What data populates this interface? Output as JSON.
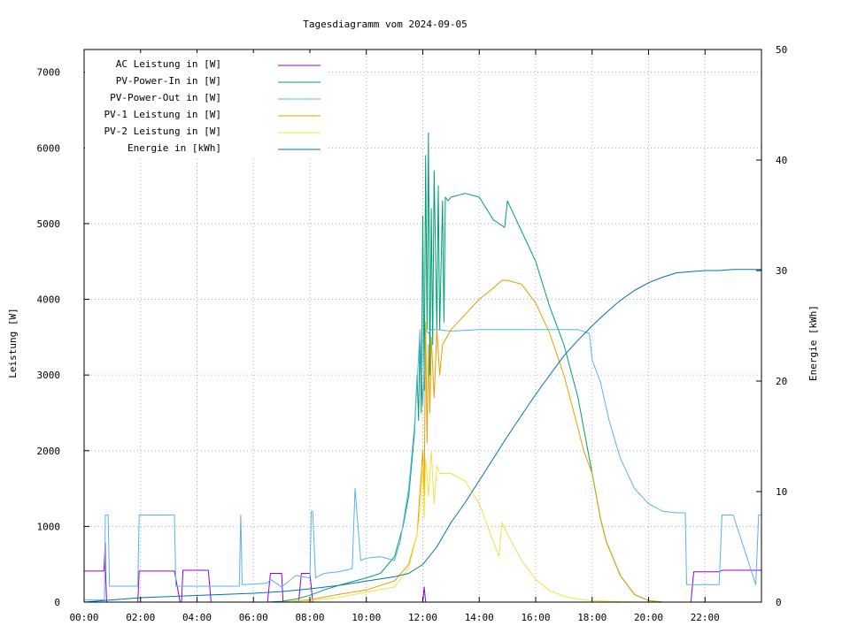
{
  "chart_data": {
    "type": "line",
    "title": "Tagesdiagramm vom 2024-09-05",
    "ylabel": "Leistung [W]",
    "y2label": "Energie [kWh]",
    "xlim": [
      0,
      24
    ],
    "ylim": [
      0,
      7300
    ],
    "y2lim": [
      0,
      50
    ],
    "x_ticks": [
      {
        "v": 0,
        "label": "00:00"
      },
      {
        "v": 2,
        "label": "02:00"
      },
      {
        "v": 4,
        "label": "04:00"
      },
      {
        "v": 6,
        "label": "06:00"
      },
      {
        "v": 8,
        "label": "08:00"
      },
      {
        "v": 10,
        "label": "10:00"
      },
      {
        "v": 12,
        "label": "12:00"
      },
      {
        "v": 14,
        "label": "14:00"
      },
      {
        "v": 16,
        "label": "16:00"
      },
      {
        "v": 18,
        "label": "18:00"
      },
      {
        "v": 20,
        "label": "20:00"
      },
      {
        "v": 22,
        "label": "22:00"
      }
    ],
    "y_ticks": [
      {
        "v": 0,
        "label": "0"
      },
      {
        "v": 1000,
        "label": "1000"
      },
      {
        "v": 2000,
        "label": "2000"
      },
      {
        "v": 3000,
        "label": "3000"
      },
      {
        "v": 4000,
        "label": "4000"
      },
      {
        "v": 5000,
        "label": "5000"
      },
      {
        "v": 6000,
        "label": "6000"
      },
      {
        "v": 7000,
        "label": "7000"
      }
    ],
    "y2_ticks": [
      {
        "v": 0,
        "label": "0"
      },
      {
        "v": 10,
        "label": "10"
      },
      {
        "v": 20,
        "label": "20"
      },
      {
        "v": 30,
        "label": "30"
      },
      {
        "v": 40,
        "label": "40"
      },
      {
        "v": 50,
        "label": "50"
      }
    ],
    "grid": true,
    "legend_position": "top-left",
    "series": [
      {
        "name": "AC Leistung in [W]",
        "color": "#9400d3",
        "axis": "y1",
        "x": [
          0,
          0.7,
          0.75,
          0.76,
          0.8,
          1.0,
          1.2,
          1.9,
          1.95,
          3.2,
          3.4,
          3.45,
          3.5,
          4.4,
          4.5,
          5.5,
          5.6,
          6.5,
          6.6,
          7.0,
          7.05,
          7.6,
          7.7,
          8.0,
          8.1,
          9.0,
          11.0,
          11.5,
          12.0,
          12.05,
          12.1,
          12.2,
          21.0,
          21.5,
          21.6,
          21.7,
          22.5,
          22.6,
          24.0
        ],
        "y": [
          410,
          410,
          780,
          410,
          0,
          0,
          0,
          0,
          410,
          410,
          0,
          0,
          420,
          420,
          0,
          0,
          0,
          0,
          380,
          380,
          0,
          0,
          380,
          380,
          0,
          0,
          0,
          0,
          0,
          200,
          0,
          0,
          0,
          0,
          400,
          400,
          400,
          420,
          420
        ]
      },
      {
        "name": "PV-Power-In in [W]",
        "color": "#009e73",
        "axis": "y1",
        "x": [
          0,
          6.5,
          7.0,
          7.5,
          8.0,
          8.5,
          9.0,
          9.5,
          10.0,
          10.5,
          11.0,
          11.3,
          11.5,
          11.7,
          11.8,
          11.85,
          11.9,
          11.95,
          12.0,
          12.05,
          12.1,
          12.15,
          12.2,
          12.25,
          12.3,
          12.35,
          12.4,
          12.5,
          12.55,
          12.6,
          12.7,
          12.75,
          12.8,
          12.9,
          13.0,
          13.5,
          14.0,
          14.5,
          14.9,
          15.0,
          15.5,
          16.0,
          16.5,
          17.0,
          17.5,
          17.7,
          18.0,
          18.3,
          18.5,
          19.0,
          19.5,
          20.0,
          20.5,
          21.0,
          21.5,
          24.0
        ],
        "y": [
          0,
          0,
          10,
          40,
          90,
          160,
          220,
          270,
          320,
          380,
          600,
          1000,
          1400,
          2200,
          3000,
          2400,
          3500,
          2500,
          5100,
          2800,
          5900,
          3600,
          6200,
          3000,
          5200,
          3400,
          5700,
          3600,
          5500,
          3600,
          5300,
          3700,
          5350,
          5300,
          5350,
          5400,
          5350,
          5050,
          4950,
          5300,
          4900,
          4500,
          3900,
          3400,
          2700,
          2300,
          1700,
          1100,
          800,
          350,
          100,
          20,
          0,
          0,
          0,
          0
        ]
      },
      {
        "name": "PV-Power-Out in [W]",
        "color": "#56b4e9",
        "axis": "y1",
        "x": [
          0,
          0.72,
          0.75,
          0.85,
          0.9,
          1.0,
          1.9,
          1.95,
          3.2,
          3.25,
          3.5,
          5.5,
          5.55,
          5.6,
          6.5,
          6.6,
          7.0,
          7.5,
          8.0,
          8.05,
          8.1,
          8.2,
          8.5,
          9.0,
          9.5,
          9.6,
          9.8,
          10.0,
          10.5,
          11.0,
          11.2,
          11.5,
          11.7,
          11.8,
          11.9,
          12.0,
          12.1,
          12.2,
          12.3,
          12.5,
          13.0,
          14.0,
          15.0,
          16.0,
          17.0,
          17.5,
          17.9,
          18.0,
          18.3,
          18.6,
          19.0,
          19.5,
          20.0,
          20.5,
          21.0,
          21.3,
          21.35,
          21.4,
          22.0,
          22.5,
          22.6,
          23.0,
          23.8,
          23.9,
          24.0
        ],
        "y": [
          30,
          30,
          1150,
          1150,
          210,
          210,
          210,
          1150,
          1150,
          210,
          210,
          210,
          1150,
          230,
          250,
          300,
          200,
          350,
          320,
          1200,
          1200,
          320,
          380,
          400,
          440,
          1500,
          550,
          580,
          600,
          550,
          800,
          1500,
          2300,
          2900,
          3600,
          2600,
          3600,
          3550,
          3600,
          3600,
          3580,
          3600,
          3600,
          3600,
          3600,
          3600,
          3550,
          3200,
          2900,
          2400,
          1900,
          1500,
          1300,
          1200,
          1180,
          1180,
          230,
          230,
          230,
          230,
          1150,
          1150,
          230,
          1150,
          1150
        ]
      },
      {
        "name": "PV-1 Leistung in [W]",
        "color": "#e69f00",
        "axis": "y1",
        "x": [
          0,
          7.0,
          8.0,
          9.0,
          10.0,
          11.0,
          11.5,
          11.8,
          12.0,
          12.05,
          12.1,
          12.15,
          12.2,
          12.25,
          12.3,
          12.4,
          12.5,
          12.6,
          12.7,
          13.0,
          13.5,
          14.0,
          14.5,
          14.8,
          15.0,
          15.5,
          16.0,
          16.5,
          17.0,
          17.5,
          17.7,
          18.0,
          18.3,
          18.5,
          19.0,
          19.5,
          20.0,
          20.5,
          24.0
        ],
        "y": [
          0,
          0,
          30,
          100,
          160,
          280,
          500,
          900,
          2000,
          1400,
          3700,
          2100,
          3400,
          2500,
          3500,
          2700,
          3600,
          3000,
          3400,
          3600,
          3800,
          4000,
          4150,
          4250,
          4250,
          4200,
          3950,
          3550,
          3000,
          2300,
          2000,
          1700,
          1100,
          800,
          350,
          100,
          20,
          0,
          0
        ]
      },
      {
        "name": "PV-2 Leistung in [W]",
        "color": "#f0e442",
        "axis": "y1",
        "x": [
          0,
          7.0,
          8.0,
          9.0,
          10.0,
          11.0,
          11.5,
          11.8,
          11.9,
          12.0,
          12.05,
          12.1,
          12.2,
          12.3,
          12.4,
          12.5,
          12.6,
          13.0,
          13.5,
          14.0,
          14.5,
          14.7,
          14.8,
          15.0,
          15.5,
          16.0,
          16.5,
          17.0,
          17.5,
          18.0,
          19.0,
          20.0,
          20.5,
          24.0
        ],
        "y": [
          0,
          0,
          20,
          60,
          130,
          200,
          450,
          900,
          1200,
          1800,
          1100,
          1900,
          1400,
          2000,
          1300,
          1800,
          1700,
          1700,
          1600,
          1300,
          800,
          600,
          1050,
          900,
          550,
          300,
          150,
          80,
          40,
          20,
          5,
          0,
          0,
          0
        ]
      },
      {
        "name": "Energie in [kWh]",
        "color": "#0072b2",
        "axis": "y2",
        "x": [
          0,
          1.0,
          2.0,
          3.0,
          4.0,
          5.0,
          6.0,
          7.0,
          8.0,
          9.0,
          10.0,
          11.0,
          11.5,
          12.0,
          12.5,
          13.0,
          13.5,
          14.0,
          15.0,
          16.0,
          17.0,
          17.5,
          18.0,
          18.5,
          19.0,
          19.5,
          20.0,
          20.5,
          21.0,
          21.5,
          22.0,
          22.5,
          23.0,
          24.0
        ],
        "y": [
          0,
          0.2,
          0.4,
          0.5,
          0.6,
          0.7,
          0.8,
          0.95,
          1.2,
          1.5,
          1.9,
          2.3,
          2.6,
          3.4,
          5.0,
          7.2,
          9.0,
          11.0,
          15.0,
          18.8,
          22.3,
          23.7,
          25.0,
          26.2,
          27.3,
          28.2,
          28.9,
          29.4,
          29.8,
          29.9,
          30.0,
          30.0,
          30.1,
          30.1
        ]
      }
    ]
  }
}
